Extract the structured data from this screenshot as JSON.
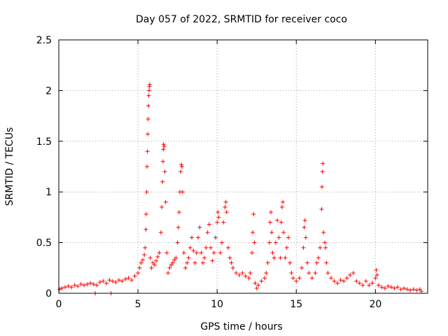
{
  "chart_data": {
    "type": "scatter",
    "title": "Day 057 of 2022, SRMTID for receiver coco",
    "xlabel": "GPS time / hours",
    "ylabel": "SRMTID / TECUs",
    "xlim": [
      0,
      23.3
    ],
    "ylim": [
      0,
      2.5
    ],
    "xticks": [
      0,
      5,
      10,
      15,
      20
    ],
    "xtick_labels": [
      "0",
      "5",
      "10",
      "15",
      "20"
    ],
    "yticks": [
      0,
      0.5,
      1,
      1.5,
      2,
      2.5
    ],
    "ytick_labels": [
      "0",
      "0.5",
      "1",
      "1.5",
      "2",
      "2.5"
    ],
    "grid": true,
    "marker": "+",
    "color": "#ff0000",
    "series": [
      {
        "name": "SRMTID",
        "points": [
          [
            0.05,
            0.04
          ],
          [
            0.2,
            0.05
          ],
          [
            0.4,
            0.06
          ],
          [
            0.6,
            0.07
          ],
          [
            0.8,
            0.06
          ],
          [
            1.0,
            0.08
          ],
          [
            1.2,
            0.07
          ],
          [
            1.4,
            0.09
          ],
          [
            1.6,
            0.08
          ],
          [
            1.8,
            0.09
          ],
          [
            2.0,
            0.1
          ],
          [
            2.2,
            0.09
          ],
          [
            2.4,
            0.08
          ],
          [
            2.6,
            0.11
          ],
          [
            2.8,
            0.12
          ],
          [
            3.0,
            0.1
          ],
          [
            3.2,
            0.13
          ],
          [
            3.4,
            0.12
          ],
          [
            3.6,
            0.11
          ],
          [
            3.8,
            0.13
          ],
          [
            4.0,
            0.12
          ],
          [
            4.2,
            0.14
          ],
          [
            4.4,
            0.15
          ],
          [
            4.6,
            0.13
          ],
          [
            4.8,
            0.17
          ],
          [
            5.0,
            0.2
          ],
          [
            5.1,
            0.25
          ],
          [
            5.2,
            0.3
          ],
          [
            5.3,
            0.33
          ],
          [
            5.4,
            0.38
          ],
          [
            5.45,
            0.45
          ],
          [
            5.5,
            0.63
          ],
          [
            5.52,
            0.78
          ],
          [
            5.55,
            1.0
          ],
          [
            5.57,
            1.25
          ],
          [
            5.6,
            1.4
          ],
          [
            5.62,
            1.57
          ],
          [
            5.64,
            1.72
          ],
          [
            5.66,
            1.85
          ],
          [
            5.68,
            1.95
          ],
          [
            5.7,
            2.0
          ],
          [
            5.72,
            2.04
          ],
          [
            5.74,
            2.06
          ],
          [
            5.78,
            0.35
          ],
          [
            5.85,
            0.25
          ],
          [
            5.95,
            0.3
          ],
          [
            6.05,
            0.28
          ],
          [
            6.15,
            0.32
          ],
          [
            6.25,
            0.36
          ],
          [
            6.35,
            0.4
          ],
          [
            6.45,
            0.6
          ],
          [
            6.5,
            0.85
          ],
          [
            6.55,
            1.1
          ],
          [
            6.58,
            1.3
          ],
          [
            6.6,
            1.42
          ],
          [
            6.62,
            1.47
          ],
          [
            6.66,
            1.45
          ],
          [
            6.7,
            1.2
          ],
          [
            6.75,
            0.9
          ],
          [
            6.82,
            0.4
          ],
          [
            6.9,
            0.2
          ],
          [
            7.0,
            0.25
          ],
          [
            7.1,
            0.28
          ],
          [
            7.2,
            0.3
          ],
          [
            7.3,
            0.33
          ],
          [
            7.4,
            0.35
          ],
          [
            7.5,
            0.5
          ],
          [
            7.55,
            0.65
          ],
          [
            7.6,
            0.8
          ],
          [
            7.65,
            1.0
          ],
          [
            7.7,
            1.2
          ],
          [
            7.74,
            1.27
          ],
          [
            7.78,
            1.25
          ],
          [
            7.82,
            1.0
          ],
          [
            7.9,
            0.4
          ],
          [
            8.0,
            0.25
          ],
          [
            8.1,
            0.3
          ],
          [
            8.2,
            0.35
          ],
          [
            8.3,
            0.45
          ],
          [
            8.4,
            0.55
          ],
          [
            8.5,
            0.42
          ],
          [
            8.6,
            0.3
          ],
          [
            8.7,
            0.4
          ],
          [
            8.8,
            0.55
          ],
          [
            8.9,
            0.65
          ],
          [
            9.0,
            0.4
          ],
          [
            9.1,
            0.3
          ],
          [
            9.2,
            0.35
          ],
          [
            9.3,
            0.45
          ],
          [
            9.4,
            0.6
          ],
          [
            9.5,
            0.68
          ],
          [
            9.6,
            0.45
          ],
          [
            9.7,
            0.32
          ],
          [
            9.8,
            0.4
          ],
          [
            9.9,
            0.55
          ],
          [
            10.0,
            0.7
          ],
          [
            10.05,
            0.8
          ],
          [
            10.1,
            0.75
          ],
          [
            10.2,
            0.4
          ],
          [
            10.3,
            0.5
          ],
          [
            10.4,
            0.7
          ],
          [
            10.5,
            0.85
          ],
          [
            10.55,
            0.9
          ],
          [
            10.6,
            0.8
          ],
          [
            10.7,
            0.45
          ],
          [
            10.8,
            0.35
          ],
          [
            10.9,
            0.3
          ],
          [
            11.0,
            0.25
          ],
          [
            11.2,
            0.2
          ],
          [
            11.4,
            0.18
          ],
          [
            11.6,
            0.2
          ],
          [
            11.8,
            0.17
          ],
          [
            12.0,
            0.15
          ],
          [
            12.1,
            0.2
          ],
          [
            12.2,
            0.4
          ],
          [
            12.25,
            0.6
          ],
          [
            12.3,
            0.78
          ],
          [
            12.35,
            0.5
          ],
          [
            12.4,
            0.1
          ],
          [
            12.5,
            0.05
          ],
          [
            12.6,
            0.08
          ],
          [
            12.8,
            0.12
          ],
          [
            13.0,
            0.15
          ],
          [
            13.1,
            0.2
          ],
          [
            13.2,
            0.3
          ],
          [
            13.3,
            0.5
          ],
          [
            13.35,
            0.7
          ],
          [
            13.4,
            0.8
          ],
          [
            13.45,
            0.6
          ],
          [
            13.5,
            0.4
          ],
          [
            13.6,
            0.35
          ],
          [
            13.7,
            0.5
          ],
          [
            13.8,
            0.72
          ],
          [
            13.9,
            0.55
          ],
          [
            14.0,
            0.35
          ],
          [
            14.05,
            0.7
          ],
          [
            14.1,
            0.85
          ],
          [
            14.15,
            0.9
          ],
          [
            14.2,
            0.6
          ],
          [
            14.3,
            0.35
          ],
          [
            14.4,
            0.45
          ],
          [
            14.5,
            0.55
          ],
          [
            14.6,
            0.3
          ],
          [
            14.7,
            0.2
          ],
          [
            14.8,
            0.15
          ],
          [
            15.0,
            0.12
          ],
          [
            15.2,
            0.15
          ],
          [
            15.35,
            0.25
          ],
          [
            15.45,
            0.45
          ],
          [
            15.5,
            0.65
          ],
          [
            15.55,
            0.72
          ],
          [
            15.6,
            0.55
          ],
          [
            15.7,
            0.3
          ],
          [
            15.8,
            0.2
          ],
          [
            16.0,
            0.15
          ],
          [
            16.2,
            0.2
          ],
          [
            16.3,
            0.3
          ],
          [
            16.4,
            0.35
          ],
          [
            16.5,
            0.45
          ],
          [
            16.6,
            0.83
          ],
          [
            16.62,
            1.05
          ],
          [
            16.65,
            1.2
          ],
          [
            16.68,
            1.28
          ],
          [
            16.72,
            0.6
          ],
          [
            16.8,
            0.5
          ],
          [
            16.85,
            0.45
          ],
          [
            16.9,
            0.3
          ],
          [
            17.0,
            0.2
          ],
          [
            17.2,
            0.15
          ],
          [
            17.4,
            0.12
          ],
          [
            17.6,
            0.1
          ],
          [
            17.8,
            0.13
          ],
          [
            18.0,
            0.12
          ],
          [
            18.2,
            0.15
          ],
          [
            18.4,
            0.18
          ],
          [
            18.6,
            0.2
          ],
          [
            18.8,
            0.12
          ],
          [
            19.0,
            0.1
          ],
          [
            19.2,
            0.08
          ],
          [
            19.4,
            0.12
          ],
          [
            19.6,
            0.08
          ],
          [
            19.8,
            0.1
          ],
          [
            20.0,
            0.15
          ],
          [
            20.05,
            0.23
          ],
          [
            20.1,
            0.18
          ],
          [
            20.2,
            0.08
          ],
          [
            20.4,
            0.06
          ],
          [
            20.6,
            0.05
          ],
          [
            20.8,
            0.07
          ],
          [
            21.0,
            0.06
          ],
          [
            21.2,
            0.05
          ],
          [
            21.4,
            0.06
          ],
          [
            21.6,
            0.04
          ],
          [
            21.8,
            0.05
          ],
          [
            22.0,
            0.04
          ],
          [
            22.2,
            0.03
          ],
          [
            22.4,
            0.04
          ],
          [
            22.6,
            0.03
          ],
          [
            22.8,
            0.04
          ],
          [
            22.9,
            0.02
          ],
          [
            2.3,
            0.0
          ],
          [
            3.3,
            0.0
          ]
        ]
      }
    ]
  }
}
